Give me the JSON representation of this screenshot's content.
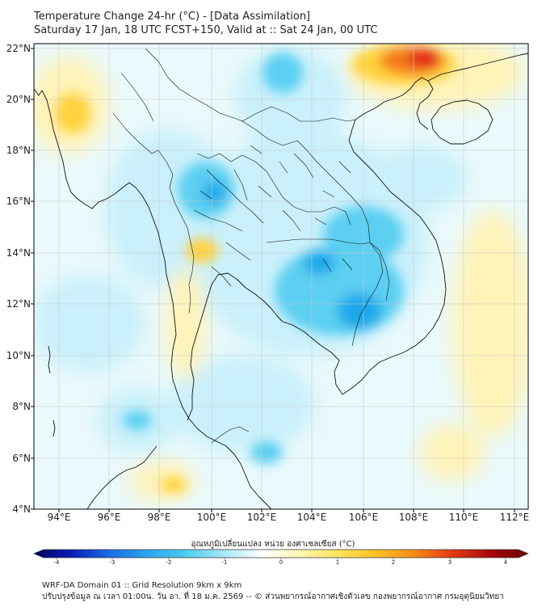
{
  "header": {
    "title_line1": "Temperature Change 24-hr (°C) - [Data Assimilation]",
    "title_line2": "Saturday 17 Jan, 18 UTC FCST+150, Valid at :: Sat 24 Jan, 00 UTC"
  },
  "map": {
    "lat_labels": [
      "22°N",
      "20°N",
      "18°N",
      "16°N",
      "14°N",
      "12°N",
      "10°N",
      "8°N",
      "6°N",
      "4°N"
    ],
    "lon_labels": [
      "94°E",
      "96°E",
      "98°E",
      "100°E",
      "102°E",
      "104°E",
      "106°E",
      "108°E",
      "110°E",
      "112°E"
    ],
    "lat_range": [
      4,
      22.2
    ],
    "lon_range": [
      93,
      112.8
    ],
    "colors": {
      "background_neutral": "#eaf9fb",
      "warm_light": "#fff3b8",
      "warm": "#ffd23d",
      "hot": "#f47a1f",
      "very_hot": "#e1231a",
      "cool_light": "#c9f0fb",
      "cool": "#5ccff2",
      "cold": "#1ba8ea",
      "very_cold": "#156fd8",
      "gridline": "#c8c8c8",
      "coastline": "#111111"
    }
  },
  "colorbar": {
    "title": "อุณหภูมิเปลี่ยนแปลง หน่วย องศาเซลเซียส (°C)",
    "ticks": [
      "-4",
      "-3",
      "-2",
      "-1",
      "0",
      "1",
      "2",
      "3",
      "4"
    ],
    "range": [
      -4,
      4
    ],
    "stops": [
      "#00005c",
      "#0a1fb8",
      "#1b6fe6",
      "#2aa6f0",
      "#4dcdf2",
      "#a8e8f6",
      "#ffffff",
      "#fff7b0",
      "#ffe45a",
      "#ffc226",
      "#f98b18",
      "#e53a14",
      "#a8070d",
      "#6b0004"
    ]
  },
  "footer": {
    "line1": "WRF-DA Domain 01 :: Grid Resolution 9km x 9km",
    "line2": "ปรับปรุงข้อมูล ณ เวลา 01:00น. วัน อา. ที่ 18 ม.ค. 2569 -- © ส่วนพยากรณ์อากาศเชิงตัวเลข กองพยากรณ์อากาศ กรมอุตุนิยมวิทยา"
  }
}
